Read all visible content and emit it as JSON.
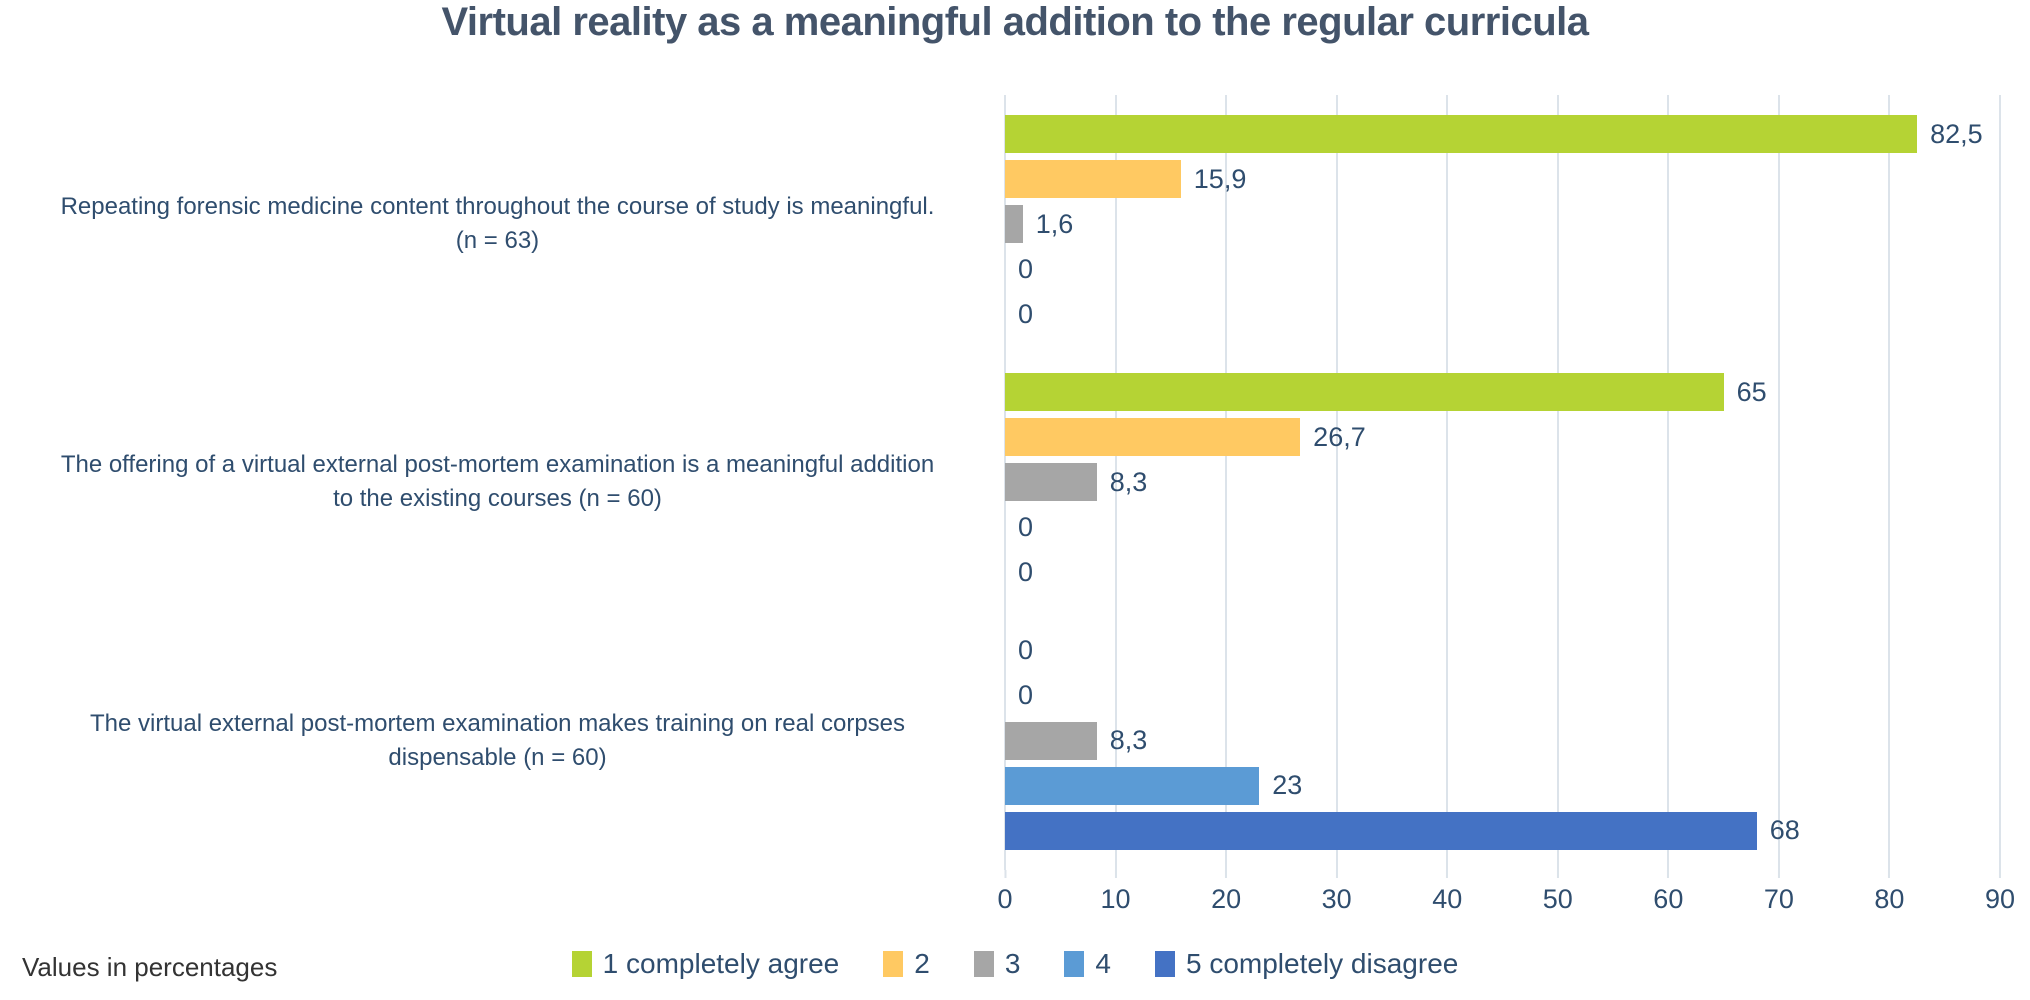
{
  "chart_data": {
    "type": "bar",
    "orientation": "horizontal",
    "title": "Virtual reality as a meaningful addition to the regular curricula",
    "note": "Values in percentages",
    "grid": true,
    "legend_position": "bottom",
    "axis": {
      "min": 0,
      "max": 90,
      "ticks": [
        "0",
        "10",
        "20",
        "30",
        "40",
        "50",
        "60",
        "70",
        "80",
        "90"
      ]
    },
    "series": [
      {
        "label": "1 completely agree",
        "color": "#b5d334"
      },
      {
        "label": "2",
        "color": "#ffc962"
      },
      {
        "label": "3",
        "color": "#a6a6a6"
      },
      {
        "label": "4",
        "color": "#5b9bd5"
      },
      {
        "label": "5 completely disagree",
        "color": "#4472c4"
      }
    ],
    "categories": [
      {
        "label": "Repeating forensic medicine content throughout the course of study is meaningful. (n = 63)",
        "label_lines": [
          "Repeating forensic medicine content throughout the course of study is meaningful.",
          "(n = 63)"
        ],
        "values": [
          {
            "display": "82,5",
            "value": 82.5
          },
          {
            "display": "15,9",
            "value": 15.9
          },
          {
            "display": "1,6",
            "value": 1.6
          },
          {
            "display": "0",
            "value": 0
          },
          {
            "display": "0",
            "value": 0
          }
        ]
      },
      {
        "label": "The offering of a virtual external post-mortem examination is a meaningful addition to the existing courses (n = 60)",
        "label_lines": [
          "The offering of a virtual external post-mortem examination is a meaningful addition",
          "to the existing courses (n = 60)"
        ],
        "values": [
          {
            "display": "65",
            "value": 65
          },
          {
            "display": "26,7",
            "value": 26.7
          },
          {
            "display": "8,3",
            "value": 8.3
          },
          {
            "display": "0",
            "value": 0
          },
          {
            "display": "0",
            "value": 0
          }
        ]
      },
      {
        "label": "The virtual external post-mortem examination makes training on real corpses dispensable (n = 60)",
        "label_lines": [
          "The virtual external post-mortem examination makes training on real corpses",
          "dispensable (n = 60)"
        ],
        "values": [
          {
            "display": "0",
            "value": 0
          },
          {
            "display": "0",
            "value": 0
          },
          {
            "display": "8,3",
            "value": 8.3
          },
          {
            "display": "23",
            "value": 23
          },
          {
            "display": "68",
            "value": 68
          }
        ]
      }
    ],
    "colors": {
      "title_text": "#44546a",
      "label_text": "#2f4d6e",
      "note_text": "#333333",
      "gridline": "#dce3ea"
    }
  }
}
